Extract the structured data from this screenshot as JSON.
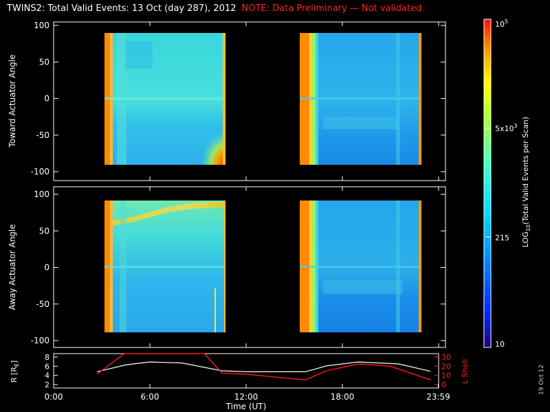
{
  "title": "TWINS2: Total Valid Events: 13 Oct (day 287), 2012",
  "note": "NOTE: Data Preliminary — Not validated",
  "panels": {
    "top": {
      "ylabel": "Toward Actuator Angle",
      "yticks": [
        "100",
        "50",
        "0",
        "-50",
        "-100"
      ]
    },
    "bottom": {
      "ylabel": "Away Actuator Angle",
      "yticks": [
        "100",
        "50",
        "0",
        "-50",
        "-100"
      ]
    },
    "orbit": {
      "left_label": "R [R",
      "left_label_sub": "E",
      "left_label_end": "]",
      "left_ticks": [
        "8",
        "6",
        "4",
        "2"
      ],
      "right_label": "L Shell",
      "right_ticks": [
        "30",
        "20",
        "10",
        "0"
      ]
    }
  },
  "xaxis": {
    "label": "Time (UT)",
    "ticks": [
      "0:00",
      "6:00",
      "12:00",
      "18:00",
      "23:59"
    ]
  },
  "colorbar": {
    "label_prefix": "LOG",
    "label_sub": "10",
    "label_suffix": "(Total Valid Events per Scan)",
    "tick_top": "10",
    "tick_top_sup": "5",
    "tick_mid_base": "5x10",
    "tick_mid_sup": "3",
    "tick_lower": "215",
    "tick_bottom": "10"
  },
  "date_stamp": "19 Oct 12",
  "colors": {
    "note": "#ff2020",
    "lshell": "#ff1a1a",
    "radius": "#ffffff",
    "background": "#000000"
  },
  "chart_data": {
    "type": "heatmap",
    "x_unit": "hours UT",
    "xlim": [
      0,
      24
    ],
    "ylim": [
      -100,
      100
    ],
    "data_intervals": [
      [
        2.7,
        10.5
      ],
      [
        15.7,
        23.4
      ]
    ],
    "actuator_angle_range": [
      -88,
      90
    ],
    "orbit": {
      "radius_ylim": [
        1.5,
        8.5
      ],
      "lshell_ylim": [
        0,
        30
      ],
      "radius_points": [
        [
          2.7,
          4.8
        ],
        [
          4.5,
          6.2
        ],
        [
          6.0,
          6.8
        ],
        [
          8.0,
          6.6
        ],
        [
          10.5,
          5.0
        ],
        [
          12.0,
          4.8
        ],
        [
          15.7,
          4.8
        ],
        [
          17.0,
          6.0
        ],
        [
          19.0,
          6.8
        ],
        [
          21.5,
          6.4
        ],
        [
          23.5,
          4.9
        ]
      ],
      "lshell_points": [
        [
          2.7,
          12
        ],
        [
          4.4,
          30
        ],
        [
          9.4,
          30
        ],
        [
          10.5,
          13
        ],
        [
          12.0,
          12
        ],
        [
          15.7,
          7
        ],
        [
          17.0,
          15
        ],
        [
          19.0,
          21
        ],
        [
          21.0,
          19
        ],
        [
          23.5,
          7
        ]
      ]
    }
  }
}
